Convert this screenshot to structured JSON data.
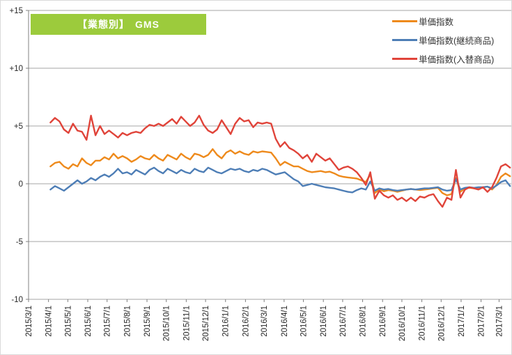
{
  "title_badge": {
    "text": "【業態別】　GMS",
    "bg_color": "#9CCB3C",
    "text_color": "#FFFFFF"
  },
  "colors": {
    "axis": "#808080",
    "grid": "#A6A6A6",
    "tick_text": "#262626"
  },
  "chart_data": {
    "type": "line",
    "title": "【業態別】　GMS",
    "xlabel": "",
    "ylabel": "",
    "ylim": [
      -10,
      15
    ],
    "grid": true,
    "legend_position": "top-right",
    "axis_start_date": "2015-03-01",
    "axis_end_date": "2017-03-20",
    "x_start_date": "2015-04-04",
    "x_interval_days": 7,
    "x_tick_labels": [
      "2015/3/1",
      "2015/4/1",
      "2015/5/1",
      "2015/6/1",
      "2015/7/1",
      "2015/8/1",
      "2015/9/1",
      "2015/10/1",
      "2015/11/1",
      "2015/12/1",
      "2016/1/1",
      "2016/2/1",
      "2016/3/1",
      "2016/4/1",
      "2016/5/1",
      "2016/6/1",
      "2016/7/1",
      "2016/8/1",
      "2016/9/1",
      "2016/10/1",
      "2016/11/1",
      "2016/12/1",
      "2017/1/1",
      "2017/2/1",
      "2017/3/1"
    ],
    "y_ticks": [
      {
        "label": "+15",
        "value": 15
      },
      {
        "label": "+10",
        "value": 10
      },
      {
        "label": "+5",
        "value": 5
      },
      {
        "label": "0",
        "value": 0
      },
      {
        "label": "-5",
        "value": -5
      },
      {
        "label": "-10",
        "value": -10
      }
    ],
    "series": [
      {
        "name": "単価指数",
        "color": "#EE8A1C",
        "values": [
          1.5,
          1.8,
          1.9,
          1.5,
          1.3,
          1.7,
          1.5,
          2.2,
          1.8,
          1.6,
          2.0,
          2.0,
          2.3,
          2.1,
          2.6,
          2.2,
          2.4,
          2.2,
          1.9,
          2.1,
          2.4,
          2.2,
          2.1,
          2.5,
          2.2,
          2.0,
          2.5,
          2.3,
          2.1,
          2.6,
          2.3,
          2.1,
          2.6,
          2.5,
          2.3,
          2.5,
          3.0,
          2.5,
          2.2,
          2.7,
          2.9,
          2.6,
          2.8,
          2.6,
          2.5,
          2.8,
          2.7,
          2.8,
          2.75,
          2.7,
          2.2,
          1.6,
          1.9,
          1.7,
          1.5,
          1.5,
          1.3,
          1.1,
          1.0,
          1.05,
          1.1,
          1.0,
          1.05,
          0.9,
          0.7,
          0.6,
          0.55,
          0.5,
          0.45,
          0.3,
          0.15,
          0.8,
          -0.8,
          -0.5,
          -0.65,
          -0.55,
          -0.6,
          -0.7,
          -0.6,
          -0.5,
          -0.45,
          -0.5,
          -0.55,
          -0.5,
          -0.45,
          -0.4,
          -0.35,
          -0.8,
          -1.0,
          -0.9,
          0.5,
          -0.7,
          -0.4,
          -0.35,
          -0.4,
          -0.45,
          -0.3,
          -0.25,
          -0.5,
          -0.1,
          0.6,
          0.9,
          0.65
        ]
      },
      {
        "name": "単価指数(継続商品)",
        "color": "#4E7EB6",
        "values": [
          -0.5,
          -0.2,
          -0.4,
          -0.6,
          -0.3,
          0.0,
          0.3,
          0.0,
          0.2,
          0.5,
          0.3,
          0.6,
          0.8,
          0.6,
          0.9,
          1.3,
          0.9,
          1.0,
          0.8,
          1.2,
          1.0,
          0.8,
          1.2,
          1.4,
          1.1,
          0.9,
          1.3,
          1.1,
          0.9,
          1.2,
          1.0,
          0.9,
          1.3,
          1.1,
          1.0,
          1.4,
          1.2,
          1.0,
          0.9,
          1.1,
          1.3,
          1.2,
          1.3,
          1.1,
          1.0,
          1.2,
          1.1,
          1.3,
          1.2,
          1.0,
          0.8,
          0.9,
          1.0,
          0.7,
          0.4,
          0.2,
          -0.2,
          -0.1,
          0.0,
          -0.1,
          -0.2,
          -0.3,
          -0.35,
          -0.4,
          -0.5,
          -0.6,
          -0.7,
          -0.75,
          -0.55,
          -0.4,
          -0.5,
          0.2,
          -0.6,
          -0.4,
          -0.5,
          -0.45,
          -0.55,
          -0.6,
          -0.55,
          -0.5,
          -0.45,
          -0.5,
          -0.45,
          -0.4,
          -0.4,
          -0.35,
          -0.3,
          -0.5,
          -0.6,
          -0.55,
          0.4,
          -0.5,
          -0.35,
          -0.3,
          -0.35,
          -0.3,
          -0.3,
          -0.25,
          -0.4,
          -0.15,
          0.15,
          0.3,
          -0.2
        ]
      },
      {
        "name": "単価指数(入替商品)",
        "color": "#E0443A",
        "values": [
          5.3,
          5.7,
          5.4,
          4.7,
          4.4,
          5.2,
          4.6,
          4.5,
          3.8,
          5.9,
          4.2,
          5.0,
          4.3,
          4.6,
          4.3,
          4.0,
          4.4,
          4.2,
          4.4,
          4.5,
          4.4,
          4.8,
          5.1,
          5.0,
          5.2,
          5.0,
          5.3,
          5.6,
          5.2,
          5.8,
          5.4,
          5.0,
          5.3,
          5.9,
          5.1,
          4.6,
          4.4,
          4.7,
          5.5,
          4.9,
          4.3,
          5.2,
          5.7,
          5.4,
          5.5,
          4.9,
          5.3,
          5.2,
          5.3,
          5.2,
          3.9,
          3.2,
          3.6,
          3.1,
          2.9,
          2.6,
          2.2,
          2.5,
          1.9,
          2.6,
          2.3,
          2.0,
          2.2,
          1.7,
          1.2,
          1.4,
          1.5,
          1.3,
          1.0,
          0.5,
          -0.1,
          1.0,
          -1.3,
          -0.6,
          -1.0,
          -1.2,
          -1.0,
          -1.4,
          -1.2,
          -1.5,
          -1.2,
          -1.5,
          -1.1,
          -1.2,
          -1.0,
          -0.9,
          -1.5,
          -2.0,
          -1.2,
          -1.4,
          1.2,
          -1.2,
          -0.5,
          -0.3,
          -0.4,
          -0.5,
          -0.3,
          -0.7,
          -0.3,
          0.5,
          1.5,
          1.7,
          1.4
        ]
      }
    ]
  }
}
